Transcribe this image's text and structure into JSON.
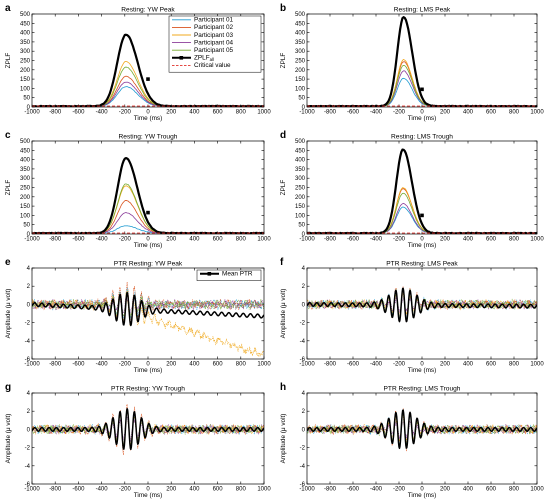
{
  "chart_data": [
    {
      "letter": "a",
      "type": "line",
      "title": "Resting: YW Peak",
      "xlabel": "Time (ms)",
      "ylabel": "ZPLF",
      "xlim": [
        -1000,
        1000
      ],
      "ylim": [
        0,
        500
      ],
      "xticks": [
        -1000,
        -800,
        -600,
        -400,
        -200,
        0,
        200,
        400,
        600,
        800,
        1000
      ],
      "yticks": [
        0,
        50,
        100,
        150,
        200,
        250,
        300,
        350,
        400,
        450,
        500
      ],
      "legend": {
        "placement": "top-right",
        "entries": [
          {
            "label": "Participant 01",
            "color": "#1f9bd1",
            "style": "solid"
          },
          {
            "label": "Participant 02",
            "color": "#d9531e",
            "style": "solid"
          },
          {
            "label": "Participant 03",
            "color": "#f0a81c",
            "style": "solid"
          },
          {
            "label": "Participant 04",
            "color": "#8b3d9a",
            "style": "solid"
          },
          {
            "label": "Participant 05",
            "color": "#77ab2f",
            "style": "solid"
          },
          {
            "label": "ZPLF",
            "sub": "all",
            "color": "#000000",
            "style": "thick"
          },
          {
            "label": "Critical value",
            "color": "#e0302a",
            "style": "dashed"
          }
        ]
      },
      "zplf": {
        "peak_x": -190,
        "width": 75,
        "critical": 5,
        "marker_x": 0,
        "marker_y": 150,
        "series": [
          {
            "name": "Participant 01",
            "color": "#1f9bd1",
            "peak": 105
          },
          {
            "name": "Participant 02",
            "color": "#d9531e",
            "peak": 160
          },
          {
            "name": "Participant 03",
            "color": "#f0a81c",
            "peak": 240
          },
          {
            "name": "Participant 04",
            "color": "#8b3d9a",
            "peak": 130
          },
          {
            "name": "Participant 05",
            "color": "#77ab2f",
            "peak": 210
          },
          {
            "name": "ZPLF all",
            "color": "#000000",
            "peak": 385
          }
        ]
      }
    },
    {
      "letter": "b",
      "type": "line",
      "title": "Resting: LMS Peak",
      "xlabel": "Time (ms)",
      "ylabel": "ZPLF",
      "xlim": [
        -1000,
        1000
      ],
      "ylim": [
        0,
        500
      ],
      "xticks": [
        -1000,
        -800,
        -600,
        -400,
        -200,
        0,
        200,
        400,
        600,
        800,
        1000
      ],
      "yticks": [
        0,
        50,
        100,
        150,
        200,
        250,
        300,
        350,
        400,
        450,
        500
      ],
      "zplf": {
        "peak_x": -160,
        "width": 55,
        "critical": 5,
        "marker_x": 0,
        "marker_y": 95,
        "series": [
          {
            "name": "Participant 01",
            "color": "#1f9bd1",
            "peak": 150
          },
          {
            "name": "Participant 02",
            "color": "#d9531e",
            "peak": 240
          },
          {
            "name": "Participant 03",
            "color": "#f0a81c",
            "peak": 250
          },
          {
            "name": "Participant 04",
            "color": "#8b3d9a",
            "peak": 190
          },
          {
            "name": "Participant 05",
            "color": "#77ab2f",
            "peak": 220
          },
          {
            "name": "ZPLF all",
            "color": "#000000",
            "peak": 480
          }
        ]
      }
    },
    {
      "letter": "c",
      "type": "line",
      "title": "Resting: YW Trough",
      "xlabel": "Time (ms)",
      "ylabel": "ZPLF",
      "xlim": [
        -1000,
        1000
      ],
      "ylim": [
        0,
        500
      ],
      "xticks": [
        -1000,
        -800,
        -600,
        -400,
        -200,
        0,
        200,
        400,
        600,
        800,
        1000
      ],
      "yticks": [
        0,
        50,
        100,
        150,
        200,
        250,
        300,
        350,
        400,
        450,
        500
      ],
      "zplf": {
        "peak_x": -190,
        "width": 72,
        "critical": 5,
        "marker_x": 0,
        "marker_y": 115,
        "series": [
          {
            "name": "Participant 01",
            "color": "#1f9bd1",
            "peak": 40
          },
          {
            "name": "Participant 02",
            "color": "#d9531e",
            "peak": 175
          },
          {
            "name": "Participant 03",
            "color": "#f0a81c",
            "peak": 255
          },
          {
            "name": "Participant 04",
            "color": "#8b3d9a",
            "peak": 110
          },
          {
            "name": "Participant 05",
            "color": "#77ab2f",
            "peak": 265
          },
          {
            "name": "ZPLF all",
            "color": "#000000",
            "peak": 405
          }
        ]
      }
    },
    {
      "letter": "d",
      "type": "line",
      "title": "Resting: LMS Trough",
      "xlabel": "Time (ms)",
      "ylabel": "ZPLF",
      "xlim": [
        -1000,
        1000
      ],
      "ylim": [
        0,
        500
      ],
      "xticks": [
        -1000,
        -800,
        -600,
        -400,
        -200,
        0,
        200,
        400,
        600,
        800,
        1000
      ],
      "yticks": [
        0,
        50,
        100,
        150,
        200,
        250,
        300,
        350,
        400,
        450,
        500
      ],
      "zplf": {
        "peak_x": -165,
        "width": 58,
        "critical": 5,
        "marker_x": 0,
        "marker_y": 100,
        "series": [
          {
            "name": "Participant 01",
            "color": "#1f9bd1",
            "peak": 140
          },
          {
            "name": "Participant 02",
            "color": "#d9531e",
            "peak": 240
          },
          {
            "name": "Participant 03",
            "color": "#f0a81c",
            "peak": 245
          },
          {
            "name": "Participant 04",
            "color": "#8b3d9a",
            "peak": 160
          },
          {
            "name": "Participant 05",
            "color": "#77ab2f",
            "peak": 215
          },
          {
            "name": "ZPLF all",
            "color": "#000000",
            "peak": 450
          }
        ]
      }
    },
    {
      "letter": "e",
      "type": "line",
      "title": "PTR Resting: YW Peak",
      "xlabel": "Time (ms)",
      "ylabel": "Amplitude (μ volt)",
      "xlim": [
        -1000,
        1000
      ],
      "ylim": [
        -6,
        4
      ],
      "xticks": [
        -1000,
        -800,
        -600,
        -400,
        -200,
        0,
        200,
        400,
        600,
        800,
        1000
      ],
      "yticks": [
        -6,
        -4,
        -2,
        0,
        2,
        4
      ],
      "legend": {
        "placement": "top-right",
        "entries": [
          {
            "label": "Mean PTR",
            "color": "#000000",
            "style": "thick"
          }
        ]
      },
      "ptr": {
        "center_x": -180,
        "period": 62,
        "burst_amp": 1.9,
        "noise": 0.35,
        "mean_end": -1.3,
        "drift": {
          "color": "#f0a81c",
          "start_x": -350,
          "end_value": -5.6
        },
        "series_colors": [
          "#1f9bd1",
          "#d9531e",
          "#f0a81c",
          "#8b3d9a",
          "#77ab2f"
        ]
      }
    },
    {
      "letter": "f",
      "type": "line",
      "title": "PTR Resting: LMS Peak",
      "xlabel": "Time (ms)",
      "ylabel": "Amplitude (μ volt)",
      "xlim": [
        -1000,
        1000
      ],
      "ylim": [
        -6,
        4
      ],
      "xticks": [
        -1000,
        -800,
        -600,
        -400,
        -200,
        0,
        200,
        400,
        600,
        800,
        1000
      ],
      "yticks": [
        -6,
        -4,
        -2,
        0,
        2,
        4
      ],
      "ptr": {
        "center_x": -165,
        "period": 62,
        "burst_amp": 1.9,
        "noise": 0.3,
        "mean_end": -0.2,
        "series_colors": [
          "#1f9bd1",
          "#d9531e",
          "#f0a81c",
          "#8b3d9a",
          "#77ab2f"
        ]
      }
    },
    {
      "letter": "g",
      "type": "line",
      "title": "PTR Resting: YW Trough",
      "xlabel": "Time (ms)",
      "ylabel": "Amplitude (μ volt)",
      "xlim": [
        -1000,
        1000
      ],
      "ylim": [
        -6,
        4
      ],
      "xticks": [
        -1000,
        -800,
        -600,
        -400,
        -200,
        0,
        200,
        400,
        600,
        800,
        1000
      ],
      "yticks": [
        -6,
        -4,
        -2,
        0,
        2,
        4
      ],
      "ptr": {
        "center_x": -180,
        "period": 62,
        "burst_amp": 2.4,
        "noise": 0.3,
        "mean_end": 0,
        "series_colors": [
          "#1f9bd1",
          "#d9531e",
          "#f0a81c",
          "#8b3d9a",
          "#77ab2f"
        ]
      }
    },
    {
      "letter": "h",
      "type": "line",
      "title": "PTR Resting: LMS Trough",
      "xlabel": "Time (ms)",
      "ylabel": "Amplitude (μ volt)",
      "xlim": [
        -1000,
        1000
      ],
      "ylim": [
        -6,
        4
      ],
      "xticks": [
        -1000,
        -800,
        -600,
        -400,
        -200,
        0,
        200,
        400,
        600,
        800,
        1000
      ],
      "yticks": [
        -6,
        -4,
        -2,
        0,
        2,
        4
      ],
      "ptr": {
        "center_x": -165,
        "period": 62,
        "burst_amp": 2.2,
        "noise": 0.3,
        "mean_end": 0,
        "series_colors": [
          "#1f9bd1",
          "#d9531e",
          "#f0a81c",
          "#8b3d9a",
          "#77ab2f"
        ]
      }
    }
  ]
}
